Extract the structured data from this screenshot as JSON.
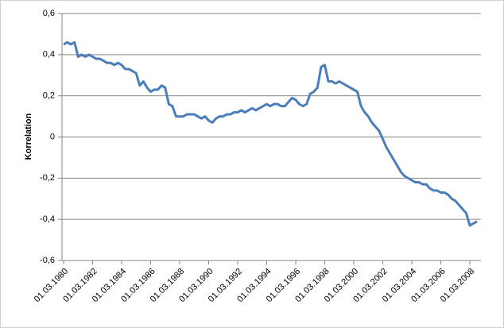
{
  "chart_data": {
    "type": "line",
    "y_label": "Korrelation",
    "categories": [
      "01.03.1980",
      null,
      null,
      null,
      null,
      null,
      null,
      null,
      "01.03.1982",
      null,
      null,
      null,
      null,
      null,
      null,
      null,
      "01.03.1984",
      null,
      null,
      null,
      null,
      null,
      null,
      null,
      "01.03.1986",
      null,
      null,
      null,
      null,
      null,
      null,
      null,
      "01.03.1988",
      null,
      null,
      null,
      null,
      null,
      null,
      null,
      "01.03.1990",
      null,
      null,
      null,
      null,
      null,
      null,
      null,
      "01.03.1992",
      null,
      null,
      null,
      null,
      null,
      null,
      null,
      "01.03.1994",
      null,
      null,
      null,
      null,
      null,
      null,
      null,
      "01.03.1996",
      null,
      null,
      null,
      null,
      null,
      null,
      null,
      "01.03.1998",
      null,
      null,
      null,
      null,
      null,
      null,
      null,
      "01.03.2000",
      null,
      null,
      null,
      null,
      null,
      null,
      null,
      "01.03.2002",
      null,
      null,
      null,
      null,
      null,
      null,
      null,
      "01.03.2004",
      null,
      null,
      null,
      null,
      null,
      null,
      null,
      "01.03.2006",
      null,
      null,
      null,
      null,
      null,
      null,
      null,
      "01.03.2008",
      null,
      null
    ],
    "series": [
      {
        "color": "#4a7ebb",
        "values": [
          0.45,
          0.46,
          0.45,
          0.46,
          0.39,
          0.4,
          0.39,
          0.4,
          0.39,
          0.38,
          0.38,
          0.37,
          0.36,
          0.36,
          0.35,
          0.36,
          0.35,
          0.33,
          0.33,
          0.32,
          0.31,
          0.25,
          0.27,
          0.24,
          0.22,
          0.23,
          0.23,
          0.25,
          0.24,
          0.16,
          0.15,
          0.1,
          0.1,
          0.1,
          0.11,
          0.11,
          0.11,
          0.1,
          0.09,
          0.1,
          0.08,
          0.07,
          0.09,
          0.1,
          0.1,
          0.11,
          0.11,
          0.12,
          0.12,
          0.13,
          0.12,
          0.13,
          0.14,
          0.13,
          0.14,
          0.15,
          0.16,
          0.15,
          0.16,
          0.16,
          0.15,
          0.15,
          0.17,
          0.19,
          0.18,
          0.16,
          0.15,
          0.16,
          0.21,
          0.22,
          0.24,
          0.34,
          0.35,
          0.27,
          0.27,
          0.26,
          0.27,
          0.26,
          0.25,
          0.24,
          0.23,
          0.22,
          0.15,
          0.12,
          0.1,
          0.07,
          0.05,
          0.03,
          -0.01,
          -0.05,
          -0.08,
          -0.11,
          -0.14,
          -0.17,
          -0.19,
          -0.2,
          -0.21,
          -0.22,
          -0.22,
          -0.23,
          -0.23,
          -0.25,
          -0.26,
          -0.26,
          -0.27,
          -0.27,
          -0.28,
          -0.3,
          -0.31,
          -0.33,
          -0.35,
          -0.37,
          -0.43,
          -0.42,
          -0.41
        ]
      }
    ],
    "ylim": [
      -0.6,
      0.6
    ],
    "yticks": [
      {
        "value": -0.6,
        "label": "-0,6"
      },
      {
        "value": -0.4,
        "label": "-0,4"
      },
      {
        "value": -0.2,
        "label": "-0,2"
      },
      0,
      {
        "value": 0.2,
        "label": "0,2"
      },
      {
        "value": 0.4,
        "label": "0,4"
      },
      {
        "value": 0.6,
        "label": "0,6"
      }
    ],
    "grid": true
  }
}
